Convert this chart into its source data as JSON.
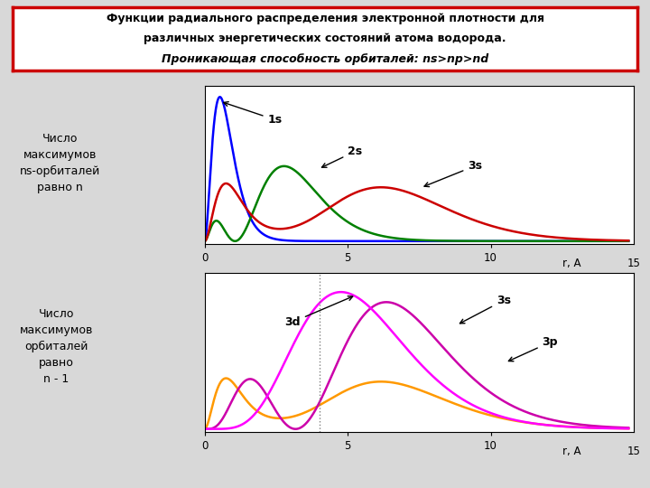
{
  "title_line1": "Функции радиального распределения электронной плотности для",
  "title_line2": "различных энергетических состояний атома водорода.",
  "title_line3": "Проникающая способность орбиталей: ns>np>nd",
  "title_border_color": "#cc0000",
  "bg_color": "#d8d8d8",
  "plot_bg": "#ffffff",
  "text_left1": "Число\nмаксимумов\nns-орбиталей\nравно n",
  "text_left2": "Число\nмаксимумов\nорбиталей\nравно\nn - 1",
  "color_1s": "#0000ff",
  "color_2s": "#008000",
  "color_3s_top": "#cc0000",
  "color_3d": "#ff00ff",
  "color_3p": "#cc00aa",
  "color_3s_bot": "#ff9900"
}
